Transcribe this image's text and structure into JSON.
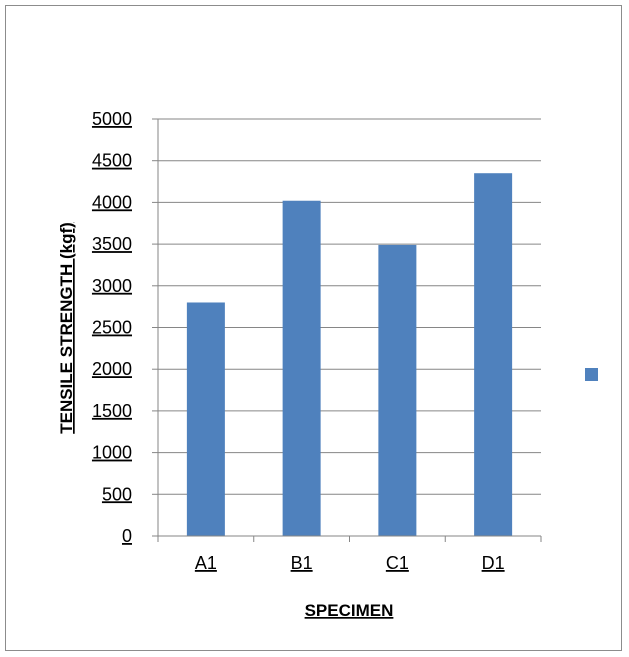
{
  "chart_data": {
    "type": "bar",
    "title": "",
    "xlabel": "SPECIMEN",
    "ylabel": "TENSILE  STRENGTH (kgf)",
    "categories": [
      "A1",
      "B1",
      "C1",
      "D1"
    ],
    "series": [
      {
        "values": [
          2800,
          4020,
          3490,
          4350
        ]
      }
    ],
    "ylim": [
      0,
      5000
    ],
    "yticks": [
      0,
      500,
      1000,
      1500,
      2000,
      2500,
      3000,
      3500,
      4000,
      4500,
      5000
    ],
    "ytick_labels": [
      "0",
      "500",
      "1000",
      "1500",
      "2000",
      "2500",
      "3000",
      "3500",
      "4000",
      "4500",
      "5000"
    ],
    "grid": true,
    "legend": "right",
    "colors": {
      "bar": "#4f81bd",
      "grid": "#868686",
      "axis": "#868686"
    }
  }
}
